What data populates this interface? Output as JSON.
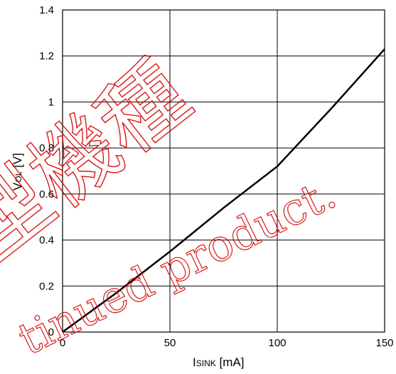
{
  "chart_data": {
    "type": "line",
    "xlabel_main": "I",
    "xlabel_sub": "SINK",
    "xlabel_unit": " [mA]",
    "ylabel_main": "V",
    "ylabel_sub": "OL",
    "ylabel_unit": " [V]",
    "xlim": [
      0,
      150
    ],
    "ylim": [
      0,
      1.4
    ],
    "x_ticks": [
      0,
      50,
      100,
      150
    ],
    "y_ticks": [
      0,
      0.2,
      0.4,
      0.6,
      0.8,
      1,
      1.2,
      1.4
    ],
    "y_tick_labels": [
      "0",
      "0.2",
      "0.4",
      "0.6",
      "0.8",
      "1",
      "1.2",
      "1.4"
    ],
    "x_tick_labels": [
      "0",
      "50",
      "100",
      "150"
    ],
    "grid": true,
    "series": [
      {
        "color": "#000000",
        "x": [
          0,
          25,
          50,
          75,
          100,
          125,
          150
        ],
        "y": [
          0,
          0.17,
          0.35,
          0.54,
          0.72,
          0.97,
          1.23
        ]
      }
    ]
  },
  "watermark": {
    "kanji": "型機種",
    "text": "tinued product."
  }
}
